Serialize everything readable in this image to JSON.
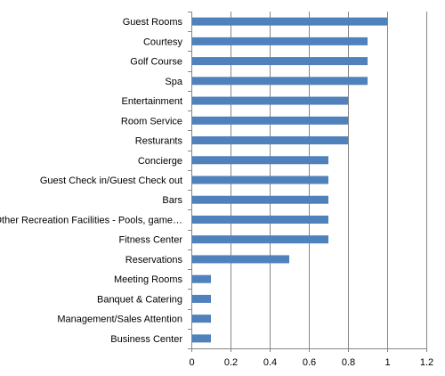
{
  "chart_data": {
    "type": "bar",
    "orientation": "horizontal",
    "categories": [
      "Guest Rooms",
      "Courtesy",
      "Golf Course",
      "Spa",
      "Entertainment",
      "Room Service",
      "Resturants",
      "Concierge",
      "Guest Check in/Guest Check out",
      "Bars",
      "Other Recreation Facilities - Pools, game…",
      "Fitness Center",
      "Reservations",
      "Meeting Rooms",
      "Banquet & Catering",
      "Management/Sales Attention",
      "Business Center"
    ],
    "values": [
      1.0,
      0.9,
      0.9,
      0.9,
      0.8,
      0.8,
      0.8,
      0.7,
      0.7,
      0.7,
      0.7,
      0.7,
      0.5,
      0.1,
      0.1,
      0.1,
      0.1
    ],
    "title": "",
    "xlabel": "",
    "ylabel": "",
    "xlim": [
      0,
      1.2
    ],
    "xticks": [
      "0",
      "0.2",
      "0.4",
      "0.6",
      "0.8",
      "1",
      "1.2"
    ],
    "grid": "vertical",
    "legend": "none",
    "bar_color": "#4F81BD",
    "grid_color": "#868686"
  }
}
